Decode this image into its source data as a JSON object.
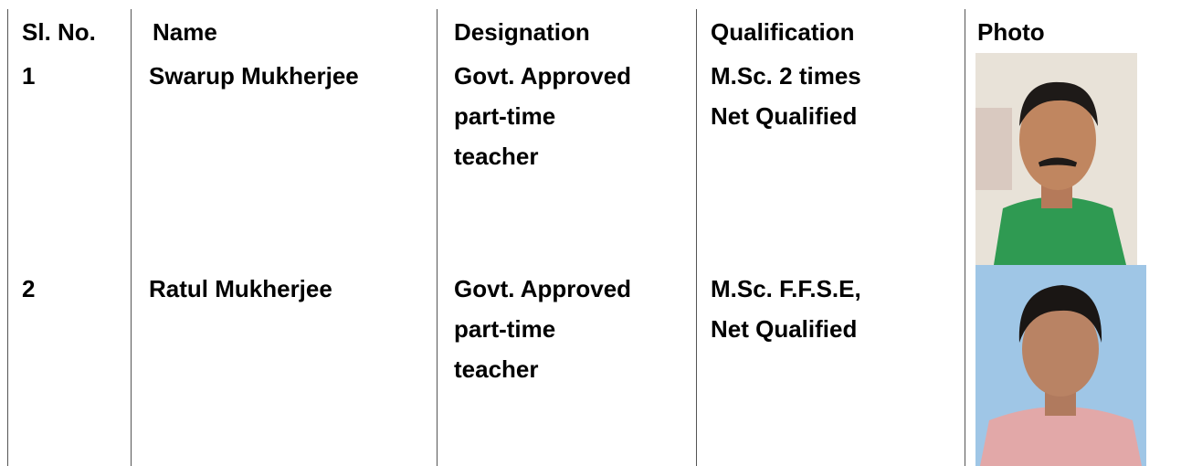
{
  "table": {
    "header": [
      "Sl. No.",
      "Name",
      "Designation",
      "Qualification",
      "Photo"
    ],
    "rows": [
      {
        "sl": "1",
        "name": "Swarup Mukherjee",
        "designation": [
          "Govt. Approved",
          "part-time",
          "teacher"
        ],
        "qualification": [
          "M.Sc. 2 times",
          "Net Qualified"
        ]
      },
      {
        "sl": "2",
        "name": "Ratul Mukherjee",
        "designation": [
          "Govt. Approved",
          "part-time",
          "teacher"
        ],
        "qualification": [
          "M.Sc. F.F.S.E,",
          "Net Qualified"
        ]
      }
    ]
  }
}
